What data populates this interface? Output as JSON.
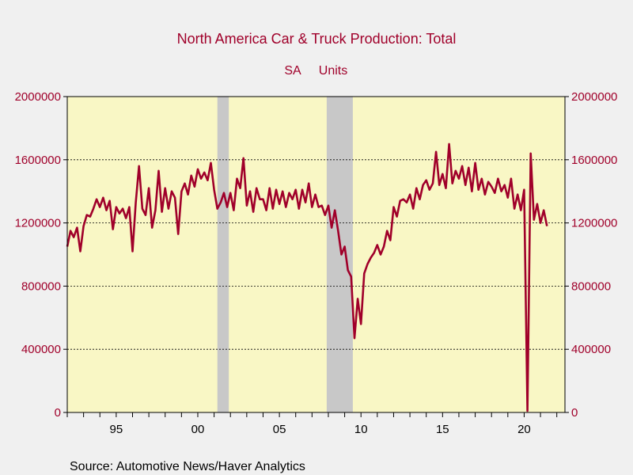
{
  "chart_data": {
    "type": "line",
    "title": "North America Car & Truck Production: Total",
    "subtitle_left": "SA",
    "subtitle_right": "Units",
    "source": "Source:  Automotive News/Haver Analytics",
    "xlim": [
      1992.0,
      2022.5
    ],
    "ylim": [
      0,
      2000000
    ],
    "y_ticks": [
      "0",
      "400000",
      "800000",
      "1200000",
      "1600000",
      "2000000"
    ],
    "y_tick_values": [
      0,
      400000,
      800000,
      1200000,
      1600000,
      2000000
    ],
    "x_tick_labels": [
      "95",
      "00",
      "05",
      "10",
      "15",
      "20"
    ],
    "x_tick_values": [
      1995,
      2000,
      2005,
      2010,
      2015,
      2020
    ],
    "grid": "horizontal dashed",
    "recession_bands": [
      [
        2001.2,
        2001.9
      ],
      [
        2007.9,
        2009.5
      ]
    ],
    "colors": {
      "background": "#f0f0f0",
      "plot_area": "#f9f7c5",
      "line": "#a0002a",
      "recession": "#c8c8c8",
      "text": "#a0002a"
    },
    "series": [
      {
        "x": [
          1992.0,
          1992.2,
          1992.4,
          1992.6,
          1992.8,
          1993.0,
          1993.2,
          1993.4,
          1993.6,
          1993.8,
          1994.0,
          1994.2,
          1994.4,
          1994.6,
          1994.8,
          1995.0,
          1995.2,
          1995.4,
          1995.6,
          1995.8,
          1996.0,
          1996.2,
          1996.4,
          1996.6,
          1996.8,
          1997.0,
          1997.2,
          1997.4,
          1997.6,
          1997.8,
          1998.0,
          1998.2,
          1998.4,
          1998.6,
          1998.8,
          1999.0,
          1999.2,
          1999.4,
          1999.6,
          1999.8,
          2000.0,
          2000.2,
          2000.4,
          2000.6,
          2000.8,
          2001.0,
          2001.2,
          2001.4,
          2001.6,
          2001.8,
          2002.0,
          2002.2,
          2002.4,
          2002.6,
          2002.8,
          2003.0,
          2003.2,
          2003.4,
          2003.6,
          2003.8,
          2004.0,
          2004.2,
          2004.4,
          2004.6,
          2004.8,
          2005.0,
          2005.2,
          2005.4,
          2005.6,
          2005.8,
          2006.0,
          2006.2,
          2006.4,
          2006.6,
          2006.8,
          2007.0,
          2007.2,
          2007.4,
          2007.6,
          2007.8,
          2008.0,
          2008.2,
          2008.4,
          2008.6,
          2008.8,
          2009.0,
          2009.2,
          2009.4,
          2009.6,
          2009.8,
          2010.0,
          2010.2,
          2010.4,
          2010.6,
          2010.8,
          2011.0,
          2011.2,
          2011.4,
          2011.6,
          2011.8,
          2012.0,
          2012.2,
          2012.4,
          2012.6,
          2012.8,
          2013.0,
          2013.2,
          2013.4,
          2013.6,
          2013.8,
          2014.0,
          2014.2,
          2014.4,
          2014.6,
          2014.8,
          2015.0,
          2015.2,
          2015.4,
          2015.6,
          2015.8,
          2016.0,
          2016.2,
          2016.4,
          2016.6,
          2016.8,
          2017.0,
          2017.2,
          2017.4,
          2017.6,
          2017.8,
          2018.0,
          2018.2,
          2018.4,
          2018.6,
          2018.8,
          2019.0,
          2019.2,
          2019.4,
          2019.6,
          2019.8,
          2020.0,
          2020.2,
          2020.4,
          2020.6,
          2020.8,
          2021.0,
          2021.2,
          2021.4
        ],
        "y": [
          1050000,
          1150000,
          1110000,
          1170000,
          1020000,
          1180000,
          1250000,
          1240000,
          1290000,
          1350000,
          1300000,
          1360000,
          1280000,
          1340000,
          1160000,
          1300000,
          1260000,
          1290000,
          1230000,
          1300000,
          1020000,
          1330000,
          1560000,
          1290000,
          1250000,
          1420000,
          1170000,
          1280000,
          1530000,
          1270000,
          1420000,
          1290000,
          1400000,
          1360000,
          1130000,
          1400000,
          1450000,
          1380000,
          1500000,
          1430000,
          1540000,
          1480000,
          1520000,
          1470000,
          1580000,
          1410000,
          1290000,
          1330000,
          1390000,
          1300000,
          1390000,
          1280000,
          1480000,
          1420000,
          1610000,
          1310000,
          1400000,
          1270000,
          1420000,
          1350000,
          1350000,
          1280000,
          1420000,
          1290000,
          1410000,
          1320000,
          1400000,
          1300000,
          1390000,
          1350000,
          1410000,
          1290000,
          1410000,
          1330000,
          1450000,
          1300000,
          1380000,
          1300000,
          1310000,
          1250000,
          1310000,
          1170000,
          1280000,
          1150000,
          1000000,
          1050000,
          900000,
          860000,
          470000,
          720000,
          560000,
          880000,
          940000,
          980000,
          1010000,
          1060000,
          1000000,
          1050000,
          1150000,
          1090000,
          1300000,
          1240000,
          1340000,
          1350000,
          1330000,
          1380000,
          1290000,
          1420000,
          1350000,
          1440000,
          1470000,
          1410000,
          1450000,
          1650000,
          1440000,
          1510000,
          1420000,
          1700000,
          1450000,
          1530000,
          1480000,
          1560000,
          1440000,
          1550000,
          1400000,
          1580000,
          1410000,
          1480000,
          1380000,
          1460000,
          1430000,
          1390000,
          1480000,
          1400000,
          1440000,
          1360000,
          1480000,
          1290000,
          1380000,
          1280000,
          1410000,
          10000,
          1640000,
          1220000,
          1320000,
          1200000,
          1280000,
          1180000
        ]
      }
    ]
  }
}
